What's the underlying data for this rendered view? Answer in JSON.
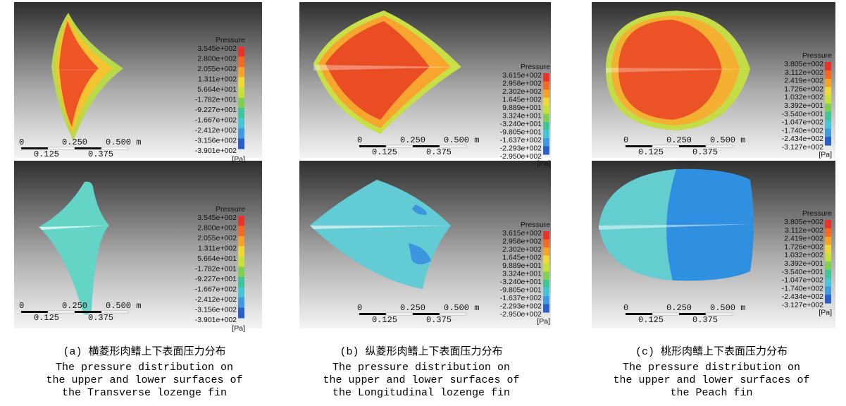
{
  "columns": [
    {
      "legend": {
        "title": "Pressure",
        "values": [
          "3.545e+002",
          "2.800e+002",
          "2.055e+002",
          "1.311e+002",
          "5.664e+001",
          "-1.782e+001",
          "-9.227e+001",
          "-1.667e+002",
          "-2.412e+002",
          "-3.156e+002",
          "-3.901e+002"
        ],
        "unit": "[Pa]"
      },
      "scale": {
        "zero": "0",
        "mid": "0.250",
        "end": "0.500 m",
        "q1": "0.125",
        "q3": "0.375"
      },
      "caption": {
        "label": "(a) 横菱形肉鳍上下表面压力分布",
        "lines": [
          "The pressure distribution on",
          "the upper and lower surfaces of",
          "the Transverse lozenge fin"
        ]
      }
    },
    {
      "legend": {
        "title": "Pressure",
        "values": [
          "3.615e+002",
          "2.958e+002",
          "2.302e+002",
          "1.645e+002",
          "9.889e+001",
          "3.324e+001",
          "-3.240e+001",
          "-9.805e+001",
          "-1.637e+002",
          "-2.293e+002",
          "-2.950e+002"
        ],
        "unit": "[Pa]"
      },
      "scale": {
        "zero": "0",
        "mid": "0.250",
        "end": "0.500 m",
        "q1": "0.125",
        "q3": "0.375"
      },
      "caption": {
        "label": "(b) 纵菱形肉鳍上下表面压力分布",
        "lines": [
          "The pressure distribution on",
          "the upper and lower surfaces of",
          "the Longitudinal lozenge fin"
        ]
      }
    },
    {
      "legend": {
        "title": "Pressure",
        "values": [
          "3.805e+002",
          "3.112e+002",
          "2.419e+002",
          "1.726e+002",
          "1.032e+002",
          "3.392e+001",
          "-3.540e+001",
          "-1.047e+002",
          "-1.740e+002",
          "-2.434e+002",
          "-3.127e+002"
        ],
        "unit": "[Pa]"
      },
      "scale": {
        "zero": "0",
        "mid": "0.250",
        "end": "0.500 m",
        "q1": "0.125",
        "q3": "0.375"
      },
      "caption": {
        "label": "(c) 桃形肉鳍上下表面压力分布",
        "lines": [
          "The pressure distribution on",
          "the upper and lower surfaces of",
          "the Peach fin"
        ]
      }
    }
  ]
}
